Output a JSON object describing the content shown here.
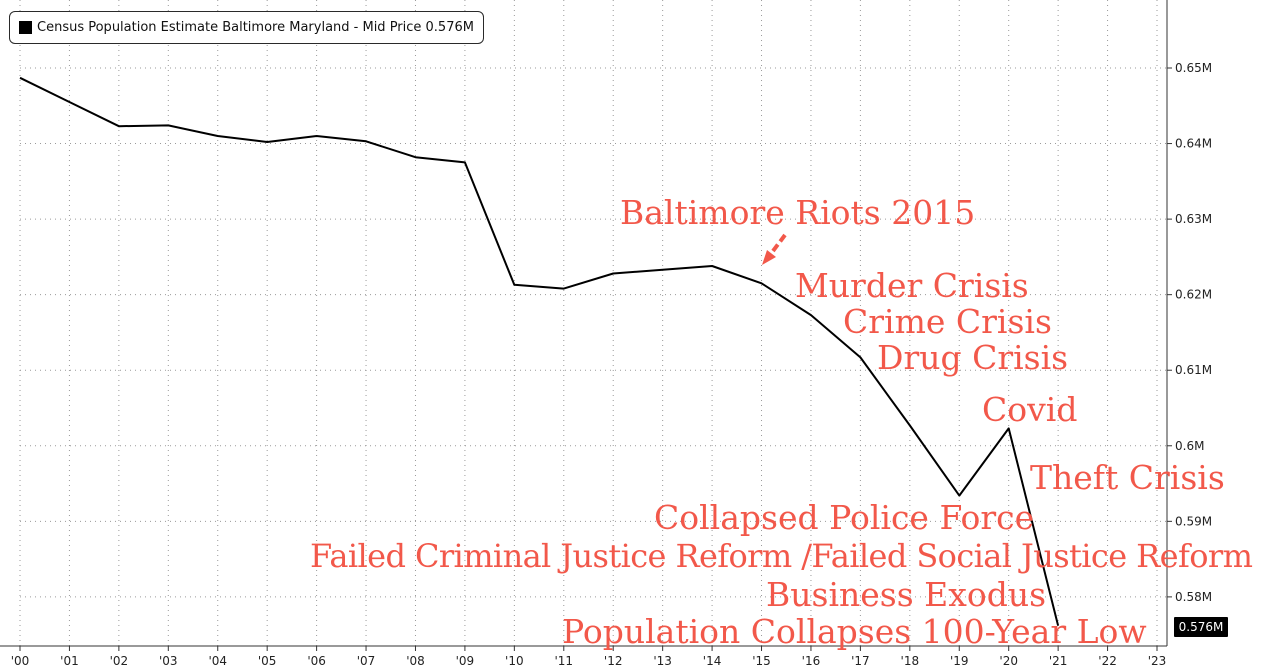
{
  "legend": {
    "text": "Census Population Estimate Baltimore Maryland - Mid Price 0.576M"
  },
  "last_value_label": "0.576M",
  "colors": {
    "line": "#000000",
    "annotation": "#f2584a",
    "grid": "#9a9a9a",
    "background": "#ffffff"
  },
  "annotations": [
    {
      "id": "riots",
      "text": "Baltimore Riots 2015"
    },
    {
      "id": "murder",
      "text": "Murder Crisis"
    },
    {
      "id": "crime",
      "text": "Crime Crisis"
    },
    {
      "id": "drug",
      "text": "Drug Crisis"
    },
    {
      "id": "covid",
      "text": "Covid"
    },
    {
      "id": "theft",
      "text": "Theft Crisis"
    },
    {
      "id": "police",
      "text": "Collapsed Police Force"
    },
    {
      "id": "reform",
      "text": "Failed Criminal Justice Reform /Failed Social Justice Reform"
    },
    {
      "id": "exodus",
      "text": "Business Exodus"
    },
    {
      "id": "collapse",
      "text": "Population Collapses 100-Year Low"
    }
  ],
  "chart_data": {
    "type": "line",
    "title": "",
    "xlabel": "",
    "ylabel": "",
    "x_tick_labels": [
      "'00",
      "'01",
      "'02",
      "'03",
      "'04",
      "'05",
      "'06",
      "'07",
      "'08",
      "'09",
      "'10",
      "'11",
      "'12",
      "'13",
      "'14",
      "'15",
      "'16",
      "'17",
      "'18",
      "'19",
      "'20",
      "'21",
      "'22",
      "'23"
    ],
    "y_tick_values": [
      0.58,
      0.59,
      0.6,
      0.61,
      0.62,
      0.63,
      0.64,
      0.65
    ],
    "y_tick_labels": [
      "0.58M",
      "0.59M",
      "0.6M",
      "0.61M",
      "0.62M",
      "0.63M",
      "0.64M",
      "0.65M"
    ],
    "ylim": [
      0.5735,
      0.659
    ],
    "xlim": [
      2000,
      2023
    ],
    "grid": true,
    "y_axis_position": "right",
    "series": [
      {
        "name": "Census Population Estimate Baltimore Maryland",
        "x": [
          2000,
          2001,
          2002,
          2003,
          2004,
          2005,
          2006,
          2007,
          2008,
          2009,
          2010,
          2011,
          2012,
          2013,
          2014,
          2015,
          2016,
          2017,
          2018,
          2019,
          2020,
          2021
        ],
        "y": [
          0.6487,
          0.6455,
          0.6423,
          0.6424,
          0.641,
          0.6402,
          0.641,
          0.6403,
          0.6382,
          0.6375,
          0.6213,
          0.6208,
          0.6228,
          0.6233,
          0.6238,
          0.6215,
          0.6173,
          0.6117,
          0.6027,
          0.5934,
          0.6023,
          0.5762
        ]
      }
    ]
  }
}
